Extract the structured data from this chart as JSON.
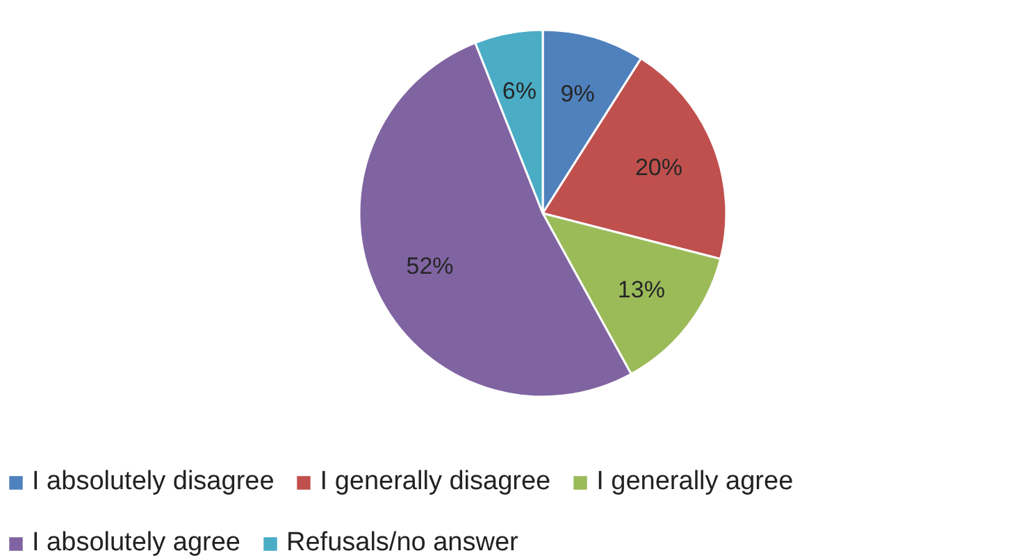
{
  "chart_data": {
    "type": "pie",
    "categories": [
      "I absolutely disagree",
      "I generally disagree",
      "I generally agree",
      "I absolutely agree",
      "Refusals/no answer"
    ],
    "values": [
      9,
      20,
      13,
      52,
      6
    ],
    "colors": [
      "#4f81bd",
      "#c0504d",
      "#9bbb59",
      "#8064a2",
      "#4bacc6"
    ],
    "value_labels": [
      "9%",
      "20%",
      "13%",
      "52%",
      "6%"
    ],
    "legend": "bottom"
  }
}
